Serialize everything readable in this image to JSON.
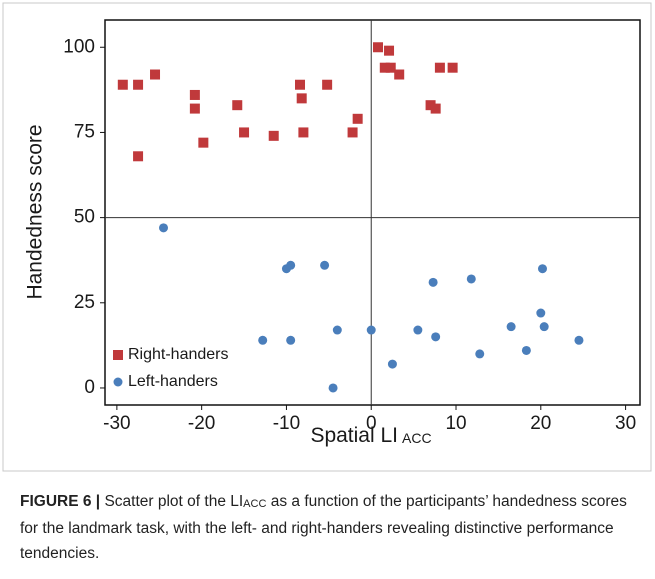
{
  "chart_data": {
    "type": "scatter",
    "xlabel": "Spatial LI",
    "xlabel_sub": "ACC",
    "ylabel": "Handedness score",
    "xlim": [
      -31.4,
      31.7
    ],
    "ylim": [
      -5,
      108
    ],
    "xticks": [
      -30,
      -20,
      -10,
      0,
      10,
      20,
      30
    ],
    "yticks": [
      0,
      25,
      50,
      75,
      100
    ],
    "reference_x": 0,
    "reference_y": 50,
    "legend": "lower left",
    "series": [
      {
        "name": "Right-handers",
        "color": "#c0393b",
        "marker": "square",
        "x": [
          -29.3,
          -27.5,
          -27.5,
          -25.5,
          -20.8,
          -20.8,
          -19.8,
          -15.8,
          -15,
          -11.5,
          -8.4,
          -8.2,
          -8,
          -5.2,
          -2.2,
          -1.6,
          0.8,
          1.6,
          2.1,
          2.3,
          3.3,
          7,
          7.6,
          8.1,
          9.6
        ],
        "y": [
          89,
          89,
          68,
          92,
          86,
          82,
          72,
          83,
          75,
          74,
          89,
          85,
          75,
          89,
          75,
          79,
          100,
          94,
          99,
          94,
          92,
          83,
          82,
          94,
          94
        ]
      },
      {
        "name": "Left-handers",
        "color": "#4a7ebb",
        "marker": "circle",
        "x": [
          -24.5,
          -10,
          -9.5,
          -5.5,
          -12.8,
          -9.5,
          -4,
          -4.5,
          0,
          2.5,
          5.5,
          7.3,
          7.6,
          11.8,
          12.8,
          16.5,
          18.3,
          20,
          20.2,
          20.4,
          24.5
        ],
        "y": [
          47,
          35,
          36,
          36,
          14,
          14,
          17,
          0,
          17,
          7,
          17,
          31,
          15,
          32,
          10,
          18,
          11,
          22,
          35,
          18,
          14
        ]
      }
    ]
  },
  "caption": {
    "label": "FIGURE 6 |",
    "text_before": " Scatter plot of the LI",
    "sub": "ACC",
    "text_after": " as a function of the participants’ handedness scores for the landmark task, with the left- and right-handers revealing distinctive performance tendencies."
  }
}
